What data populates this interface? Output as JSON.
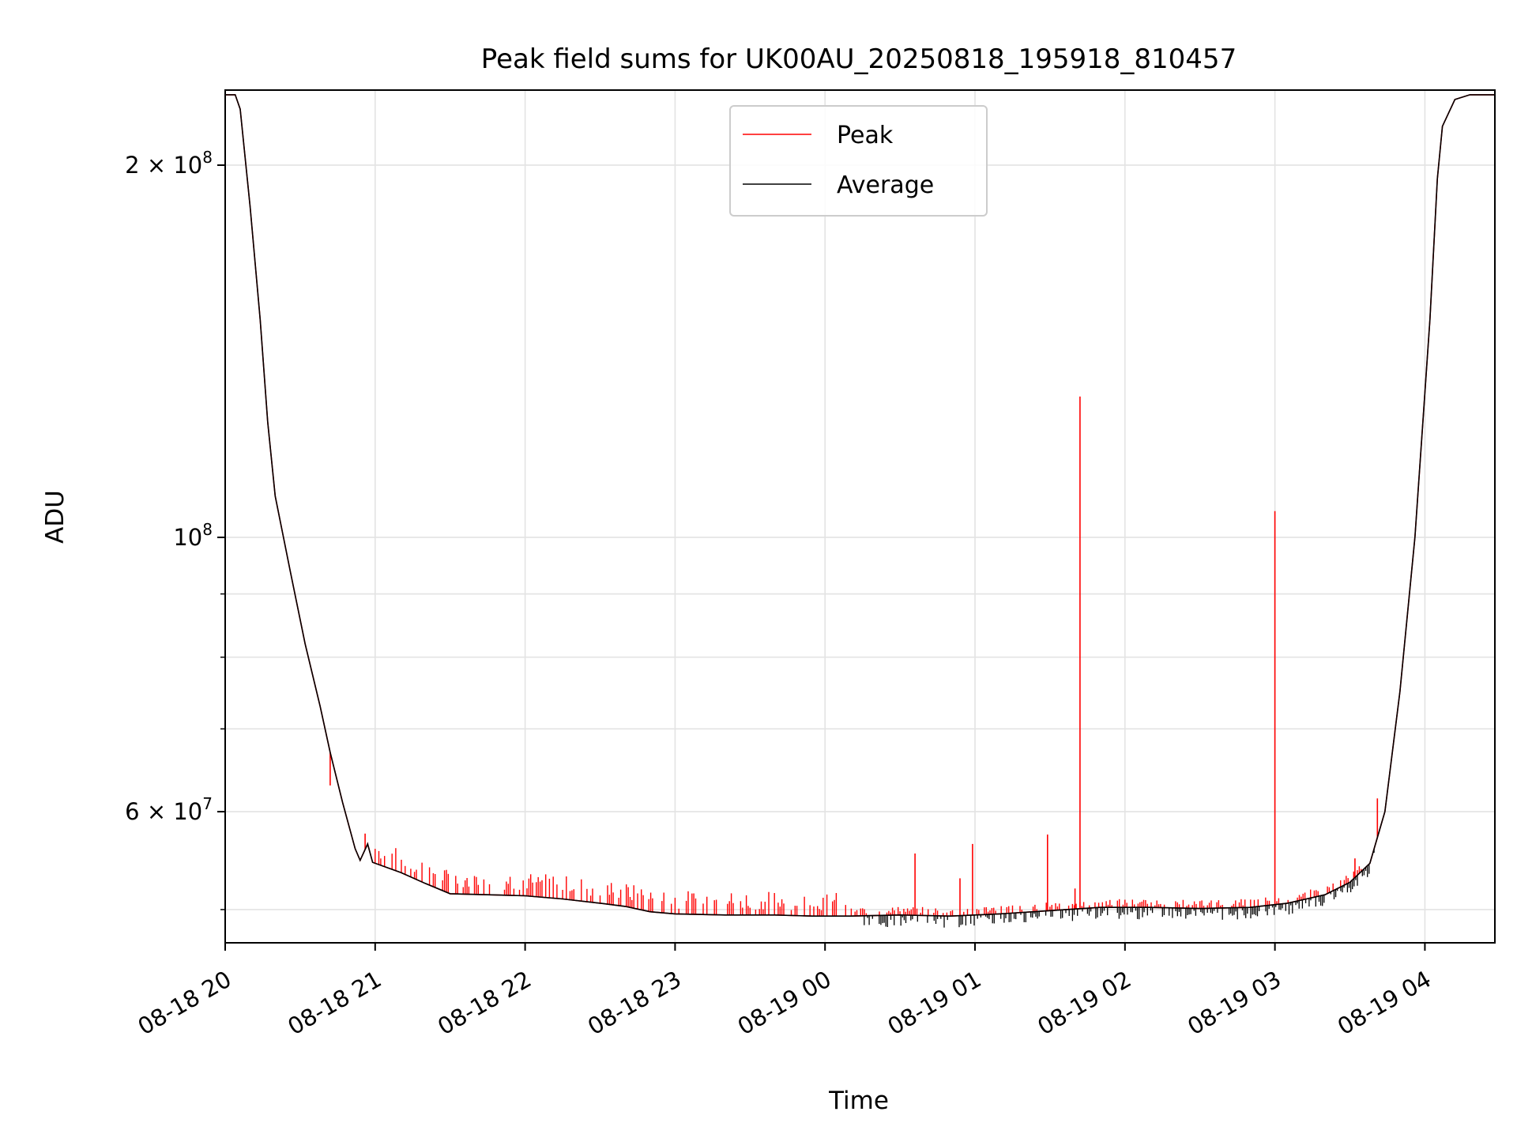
{
  "chart_data": {
    "type": "line",
    "title": "Peak field sums for UK00AU_20250818_195918_810457",
    "xlabel": "Time",
    "ylabel": "ADU",
    "y_scale": "log",
    "ylim": [
      47000000,
      230000000
    ],
    "xlim": [
      "2025-08-18 20:00",
      "2025-08-19 04:28"
    ],
    "grid": true,
    "legend_position": "top-center",
    "x_ticks": [
      {
        "label": "08-18 20",
        "value": "2025-08-18 20:00"
      },
      {
        "label": "08-18 21",
        "value": "2025-08-18 21:00"
      },
      {
        "label": "08-18 22",
        "value": "2025-08-18 22:00"
      },
      {
        "label": "08-18 23",
        "value": "2025-08-18 23:00"
      },
      {
        "label": "08-19 00",
        "value": "2025-08-19 00:00"
      },
      {
        "label": "08-19 01",
        "value": "2025-08-19 01:00"
      },
      {
        "label": "08-19 02",
        "value": "2025-08-19 02:00"
      },
      {
        "label": "08-19 03",
        "value": "2025-08-19 03:00"
      },
      {
        "label": "08-19 04",
        "value": "2025-08-19 04:00"
      }
    ],
    "y_ticks": [
      {
        "label_base": "2 × 10",
        "label_exp": "8",
        "value": 200000000
      },
      {
        "label_base": "10",
        "label_exp": "8",
        "value": 100000000
      },
      {
        "label_base": "6 × 10",
        "label_exp": "7",
        "value": 60000000
      }
    ],
    "y_minor_gridlines": [
      50000000,
      70000000,
      80000000,
      90000000
    ],
    "series": [
      {
        "name": "Average",
        "color": "#000000",
        "points": [
          [
            "2025-08-18 20:00",
            228000000
          ],
          [
            "2025-08-18 20:04",
            228000000
          ],
          [
            "2025-08-18 20:06",
            222000000
          ],
          [
            "2025-08-18 20:10",
            185000000
          ],
          [
            "2025-08-18 20:14",
            150000000
          ],
          [
            "2025-08-18 20:17",
            124000000
          ],
          [
            "2025-08-18 20:20",
            108000000
          ],
          [
            "2025-08-18 20:26",
            94000000
          ],
          [
            "2025-08-18 20:32",
            82000000
          ],
          [
            "2025-08-18 20:38",
            73000000
          ],
          [
            "2025-08-18 20:42",
            67000000
          ],
          [
            "2025-08-18 20:47",
            61000000
          ],
          [
            "2025-08-18 20:52",
            56000000
          ],
          [
            "2025-08-18 20:54",
            54800000
          ],
          [
            "2025-08-18 20:57",
            56500000
          ],
          [
            "2025-08-18 20:59",
            54600000
          ],
          [
            "2025-08-18 21:10",
            53600000
          ],
          [
            "2025-08-18 21:20",
            52500000
          ],
          [
            "2025-08-18 21:30",
            51500000
          ],
          [
            "2025-08-18 21:45",
            51400000
          ],
          [
            "2025-08-18 22:00",
            51300000
          ],
          [
            "2025-08-18 22:15",
            51000000
          ],
          [
            "2025-08-18 22:30",
            50600000
          ],
          [
            "2025-08-18 22:40",
            50300000
          ],
          [
            "2025-08-18 22:50",
            49800000
          ],
          [
            "2025-08-18 23:00",
            49600000
          ],
          [
            "2025-08-18 23:20",
            49500000
          ],
          [
            "2025-08-18 23:40",
            49500000
          ],
          [
            "2025-08-18 23:55",
            49400000
          ],
          [
            "2025-08-19 00:10",
            49400000
          ],
          [
            "2025-08-19 00:30",
            49500000
          ],
          [
            "2025-08-19 00:50",
            49400000
          ],
          [
            "2025-08-19 01:10",
            49600000
          ],
          [
            "2025-08-19 01:30",
            49900000
          ],
          [
            "2025-08-19 01:50",
            50200000
          ],
          [
            "2025-08-19 02:10",
            50200000
          ],
          [
            "2025-08-19 02:30",
            50100000
          ],
          [
            "2025-08-19 02:50",
            50200000
          ],
          [
            "2025-08-19 03:05",
            50600000
          ],
          [
            "2025-08-19 03:20",
            51400000
          ],
          [
            "2025-08-19 03:30",
            52600000
          ],
          [
            "2025-08-19 03:38",
            54500000
          ],
          [
            "2025-08-19 03:44",
            60000000
          ],
          [
            "2025-08-19 03:50",
            75000000
          ],
          [
            "2025-08-19 03:56",
            100000000
          ],
          [
            "2025-08-19 04:02",
            150000000
          ],
          [
            "2025-08-19 04:05",
            195000000
          ],
          [
            "2025-08-19 04:07",
            215000000
          ],
          [
            "2025-08-19 04:12",
            226000000
          ],
          [
            "2025-08-19 04:18",
            228000000
          ],
          [
            "2025-08-19 04:28",
            228000000
          ]
        ]
      },
      {
        "name": "Peak",
        "color": "#ff0000",
        "spikes": [
          [
            "2025-08-19 00:36",
            55500000
          ],
          [
            "2025-08-19 00:54",
            53000000
          ],
          [
            "2025-08-19 00:59",
            56500000
          ],
          [
            "2025-08-19 01:29",
            57500000
          ],
          [
            "2025-08-19 01:40",
            52000000
          ],
          [
            "2025-08-19 01:42",
            130000000
          ],
          [
            "2025-08-19 03:00",
            105000000
          ],
          [
            "2025-08-19 03:41",
            61500000
          ],
          [
            "2025-08-19 03:32",
            55000000
          ],
          [
            "2025-08-18 20:56",
            57600000
          ],
          [
            "2025-08-18 20:42",
            63000000
          ]
        ]
      }
    ]
  }
}
